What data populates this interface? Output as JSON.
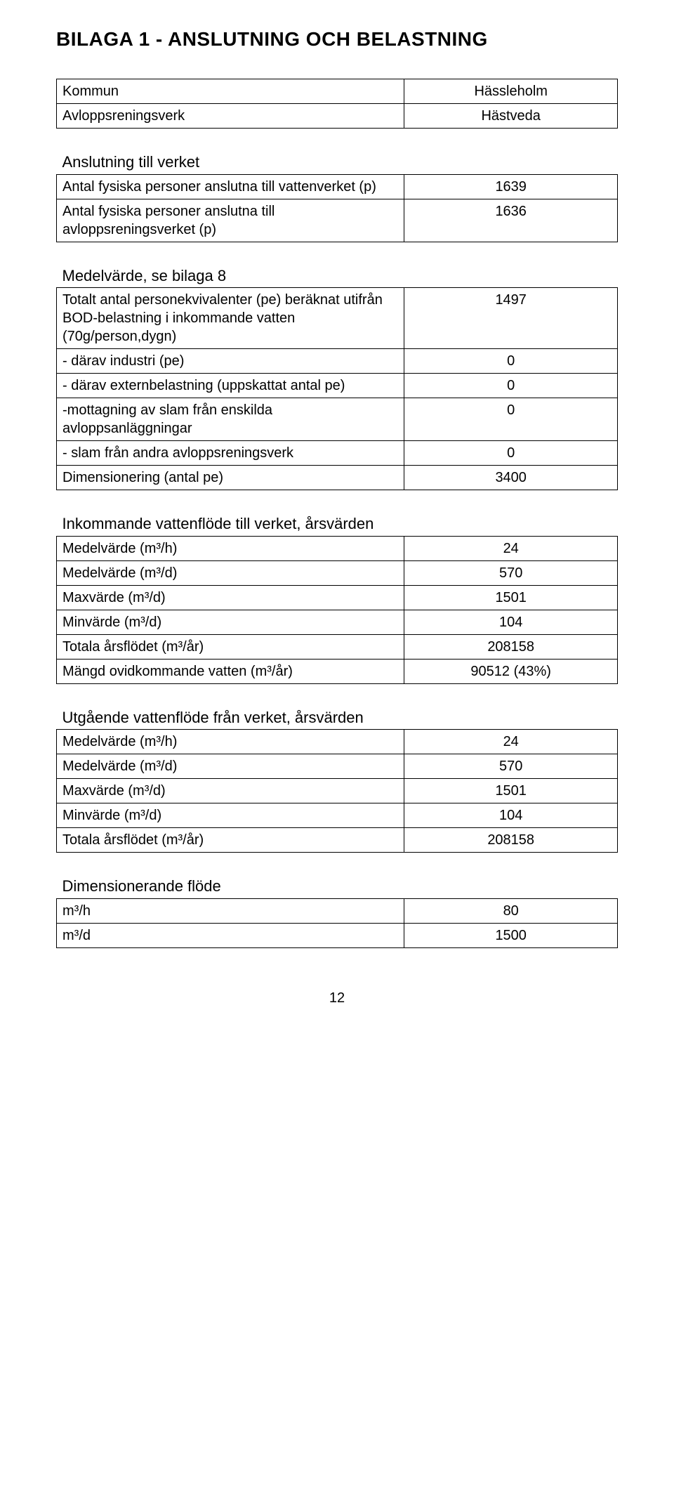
{
  "title": "BILAGA 1 - ANSLUTNING OCH BELASTNING",
  "t1": {
    "r0": {
      "label": "Kommun",
      "value": "Hässleholm"
    },
    "r1": {
      "label": "Avloppsreningsverk",
      "value": "Hästveda"
    }
  },
  "t2": {
    "head": "Anslutning till verket",
    "r0": {
      "label": "Antal fysiska personer anslutna till vattenverket (p)",
      "value": "1639"
    },
    "r1": {
      "label": "Antal fysiska personer anslutna till avloppsreningsverket (p)",
      "value": "1636"
    }
  },
  "t3": {
    "head": "Medelvärde, se bilaga 8",
    "r0": {
      "label": "Totalt antal personekvivalenter (pe) beräknat utifrån BOD-belastning i inkommande vatten (70g/person,dygn)",
      "value": "1497"
    },
    "r1": {
      "label": "- därav industri (pe)",
      "value": "0"
    },
    "r2": {
      "label": "- därav externbelastning (uppskattat antal pe)",
      "value": "0"
    },
    "r3": {
      "label": "-mottagning av slam från enskilda avloppsanläggningar",
      "value": "0"
    },
    "r4": {
      "label": "- slam från andra avloppsreningsverk",
      "value": "0"
    },
    "r5": {
      "label": "Dimensionering (antal pe)",
      "value": "3400"
    }
  },
  "t4": {
    "head": "Inkommande vattenflöde till verket, årsvärden",
    "r0": {
      "label": "Medelvärde (m³/h)",
      "value": "24"
    },
    "r1": {
      "label": "Medelvärde (m³/d)",
      "value": "570"
    },
    "r2": {
      "label": "Maxvärde (m³/d)",
      "value": "1501"
    },
    "r3": {
      "label": "Minvärde (m³/d)",
      "value": "104"
    },
    "r4": {
      "label": "Totala årsflödet (m³/år)",
      "value": "208158"
    },
    "r5": {
      "label": "Mängd ovidkommande vatten (m³/år)",
      "value": "90512 (43%)"
    }
  },
  "t5": {
    "head": "Utgående vattenflöde från verket, årsvärden",
    "r0": {
      "label": "Medelvärde (m³/h)",
      "value": "24"
    },
    "r1": {
      "label": "Medelvärde (m³/d)",
      "value": "570"
    },
    "r2": {
      "label": "Maxvärde (m³/d)",
      "value": "1501"
    },
    "r3": {
      "label": "Minvärde (m³/d)",
      "value": "104"
    },
    "r4": {
      "label": "Totala årsflödet (m³/år)",
      "value": "208158"
    }
  },
  "t6": {
    "head": "Dimensionerande flöde",
    "r0": {
      "label": " m³/h",
      "value": "80"
    },
    "r1": {
      "label": " m³/d",
      "value": "1500"
    }
  },
  "page": "12"
}
